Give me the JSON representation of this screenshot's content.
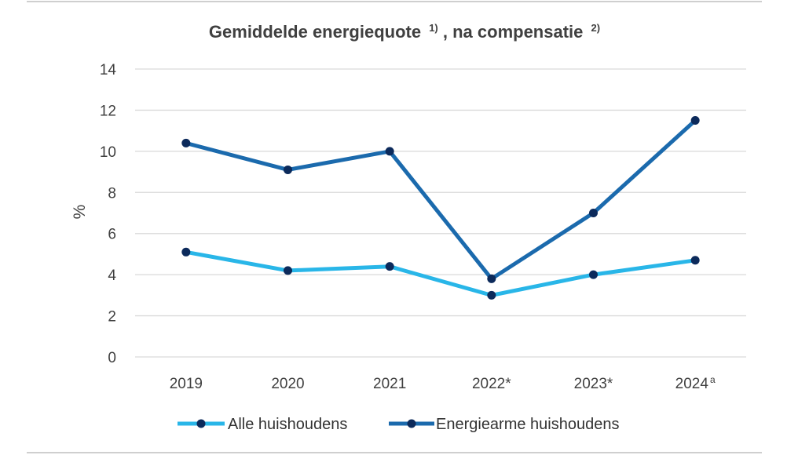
{
  "chart_data": {
    "type": "line",
    "title": "Gemiddelde energiequote",
    "title_note_1": "1)",
    "title_connector": ", na compensatie",
    "title_note_2": "2)",
    "ylabel": "%",
    "xlabel": "",
    "ylim": [
      0,
      14
    ],
    "yticks": [
      "0",
      "2",
      "4",
      "6",
      "8",
      "10",
      "12",
      "14"
    ],
    "categories": [
      "2019",
      "2020",
      "2021",
      "2022*",
      "2023*",
      "2024"
    ],
    "category_note_2024": "a",
    "grid": true,
    "legend_position": "bottom",
    "series": [
      {
        "name": "Alle huishoudens",
        "color": "#29b6e8",
        "marker_color": "#0c2a5b",
        "values": [
          5.1,
          4.2,
          4.4,
          3.0,
          4.0,
          4.7
        ]
      },
      {
        "name": "Energiearme huishoudens",
        "color": "#1b6aad",
        "marker_color": "#0c2a5b",
        "values": [
          10.4,
          9.1,
          10.0,
          3.8,
          7.0,
          11.5
        ]
      }
    ]
  }
}
